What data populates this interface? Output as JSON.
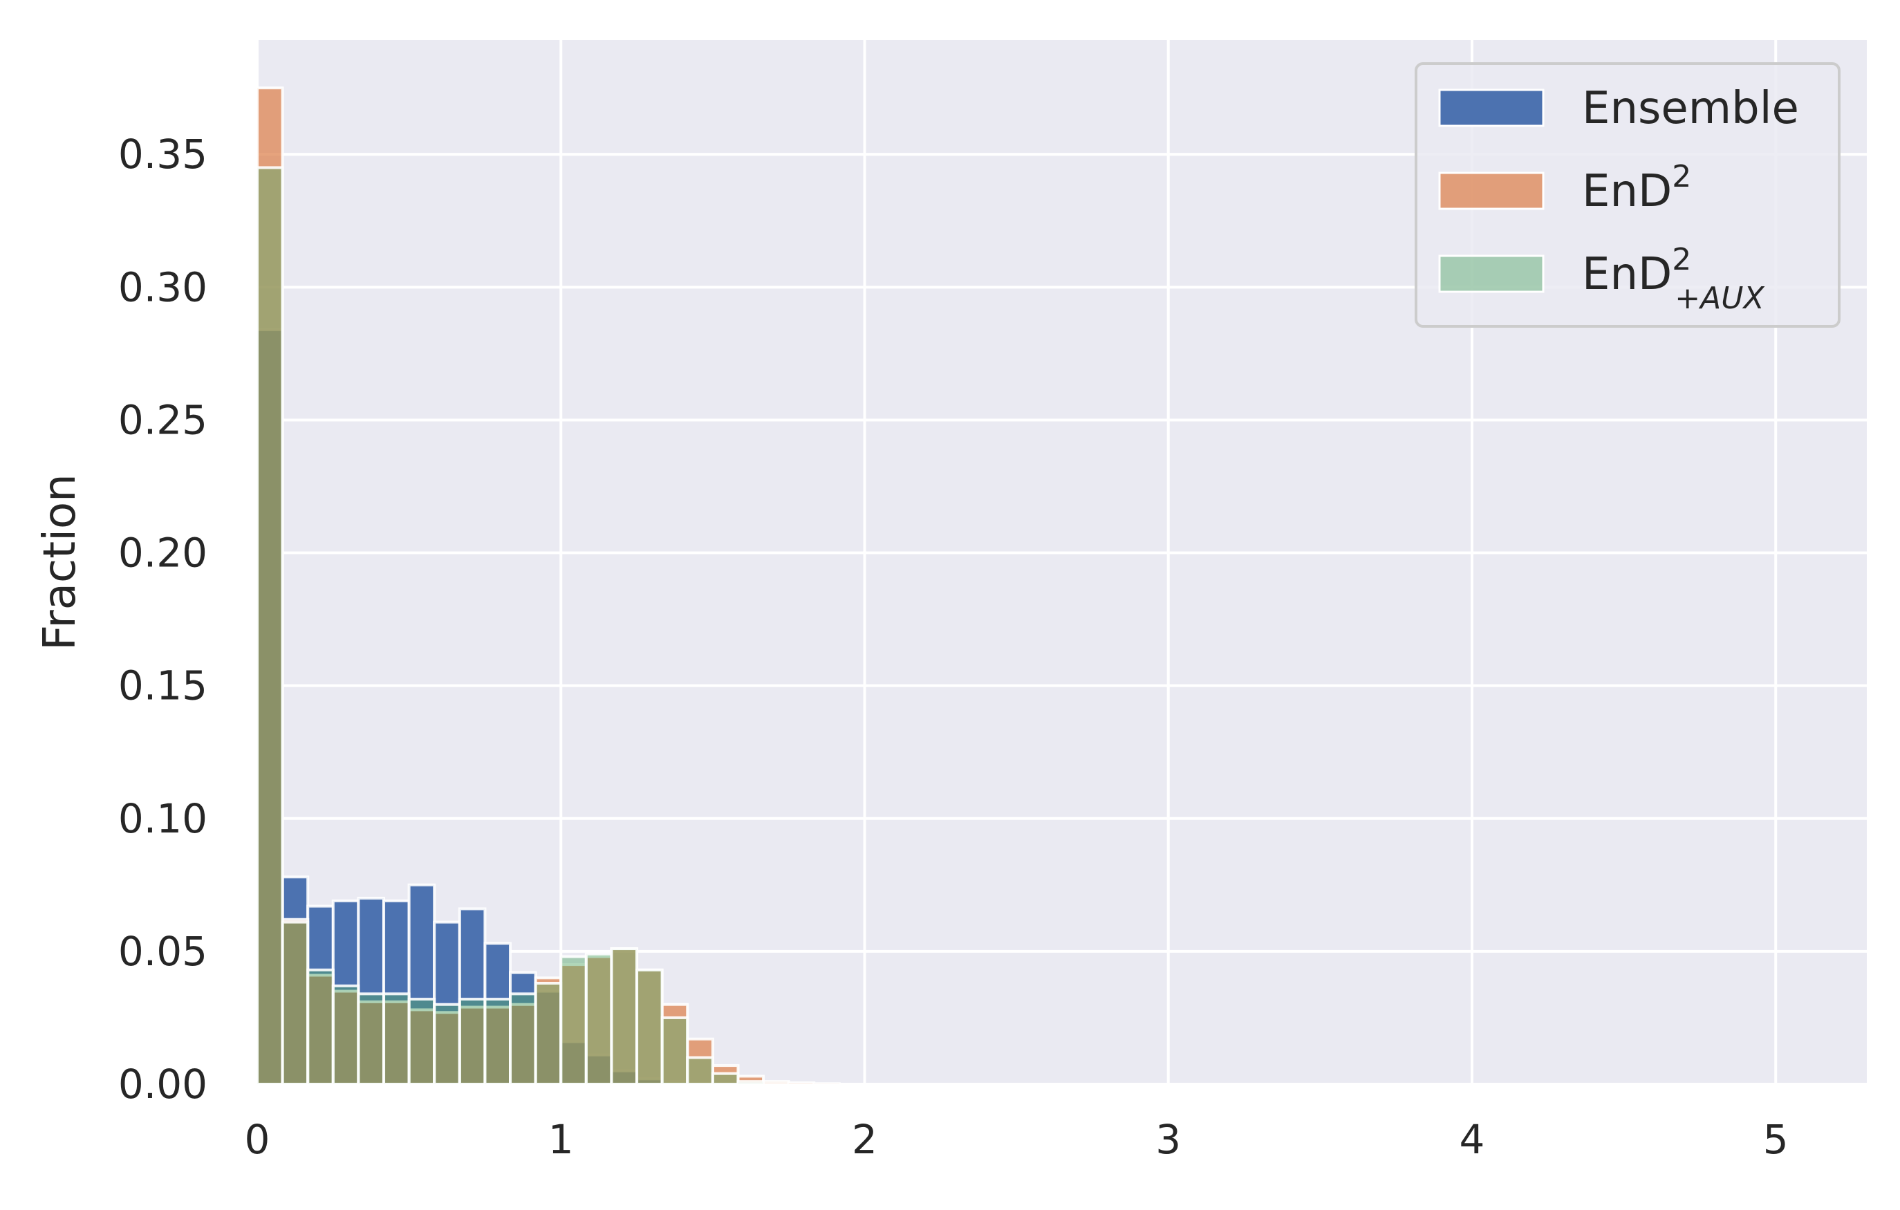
{
  "chart_data": {
    "type": "bar",
    "title": "",
    "xlabel": "",
    "ylabel": "Fraction",
    "xlim": [
      0,
      5.3
    ],
    "ylim": [
      0,
      0.393
    ],
    "xticks": [
      "0",
      "1",
      "2",
      "3",
      "4",
      "5"
    ],
    "yticks": [
      "0.00",
      "0.05",
      "0.10",
      "0.15",
      "0.20",
      "0.25",
      "0.30",
      "0.35"
    ],
    "grid": true,
    "legend_position": "top-right",
    "bin_width": 0.0833,
    "bin_start": [
      0.0,
      0.0833,
      0.1667,
      0.25,
      0.3333,
      0.4167,
      0.5,
      0.5833,
      0.6667,
      0.75,
      0.8333,
      0.9167,
      1.0,
      1.0833,
      1.1667,
      1.25,
      1.3333,
      1.4167,
      1.5,
      1.5833,
      1.6667,
      1.75,
      1.8333
    ],
    "series": [
      {
        "name": "Ensemble",
        "color": "#4c72b0",
        "values": [
          0.284,
          0.078,
          0.067,
          0.069,
          0.07,
          0.069,
          0.075,
          0.061,
          0.066,
          0.053,
          0.042,
          0.035,
          0.016,
          0.011,
          0.005,
          0.002,
          0.001,
          0.0,
          0.0,
          0.0,
          0.0,
          0.0,
          0.0
        ]
      },
      {
        "name": "EnD²",
        "color": "#dd8452",
        "values": [
          0.375,
          0.062,
          0.041,
          0.035,
          0.031,
          0.031,
          0.028,
          0.027,
          0.029,
          0.029,
          0.03,
          0.04,
          0.045,
          0.048,
          0.051,
          0.043,
          0.03,
          0.017,
          0.007,
          0.003,
          0.001,
          0.0005,
          0.0002
        ]
      },
      {
        "name": "EnD²₊AUX",
        "color": "#55a868",
        "values": [
          0.345,
          0.061,
          0.043,
          0.037,
          0.034,
          0.034,
          0.032,
          0.03,
          0.032,
          0.032,
          0.034,
          0.038,
          0.048,
          0.049,
          0.051,
          0.043,
          0.025,
          0.01,
          0.004,
          0.001,
          0.0,
          0.0,
          0.0
        ]
      }
    ],
    "legend": {
      "entries": [
        {
          "base": "Ensemble",
          "sup": "",
          "sub": ""
        },
        {
          "base": "EnD",
          "sup": "2",
          "sub": ""
        },
        {
          "base": "EnD",
          "sup": "2",
          "sub": "+AUX"
        }
      ]
    }
  }
}
